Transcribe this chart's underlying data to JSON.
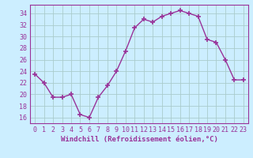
{
  "x": [
    0,
    1,
    2,
    3,
    4,
    5,
    6,
    7,
    8,
    9,
    10,
    11,
    12,
    13,
    14,
    15,
    16,
    17,
    18,
    19,
    20,
    21,
    22,
    23
  ],
  "y": [
    23.5,
    22,
    19.5,
    19.5,
    20,
    16.5,
    16,
    19.5,
    21.5,
    24,
    27.5,
    31.5,
    33,
    32.5,
    33.5,
    34,
    34.5,
    34,
    33.5,
    29.5,
    29,
    26,
    22.5,
    22.5
  ],
  "line_color": "#993399",
  "marker": "+",
  "marker_size": 4,
  "bg_color": "#cceeff",
  "grid_color": "#aacccc",
  "xlabel": "Windchill (Refroidissement éolien,°C)",
  "xlim": [
    -0.5,
    23.5
  ],
  "ylim": [
    15,
    35.5
  ],
  "yticks": [
    16,
    18,
    20,
    22,
    24,
    26,
    28,
    30,
    32,
    34
  ],
  "xticks": [
    0,
    1,
    2,
    3,
    4,
    5,
    6,
    7,
    8,
    9,
    10,
    11,
    12,
    13,
    14,
    15,
    16,
    17,
    18,
    19,
    20,
    21,
    22,
    23
  ],
  "xlabel_fontsize": 6.5,
  "tick_fontsize": 6.0,
  "line_width": 1.0
}
